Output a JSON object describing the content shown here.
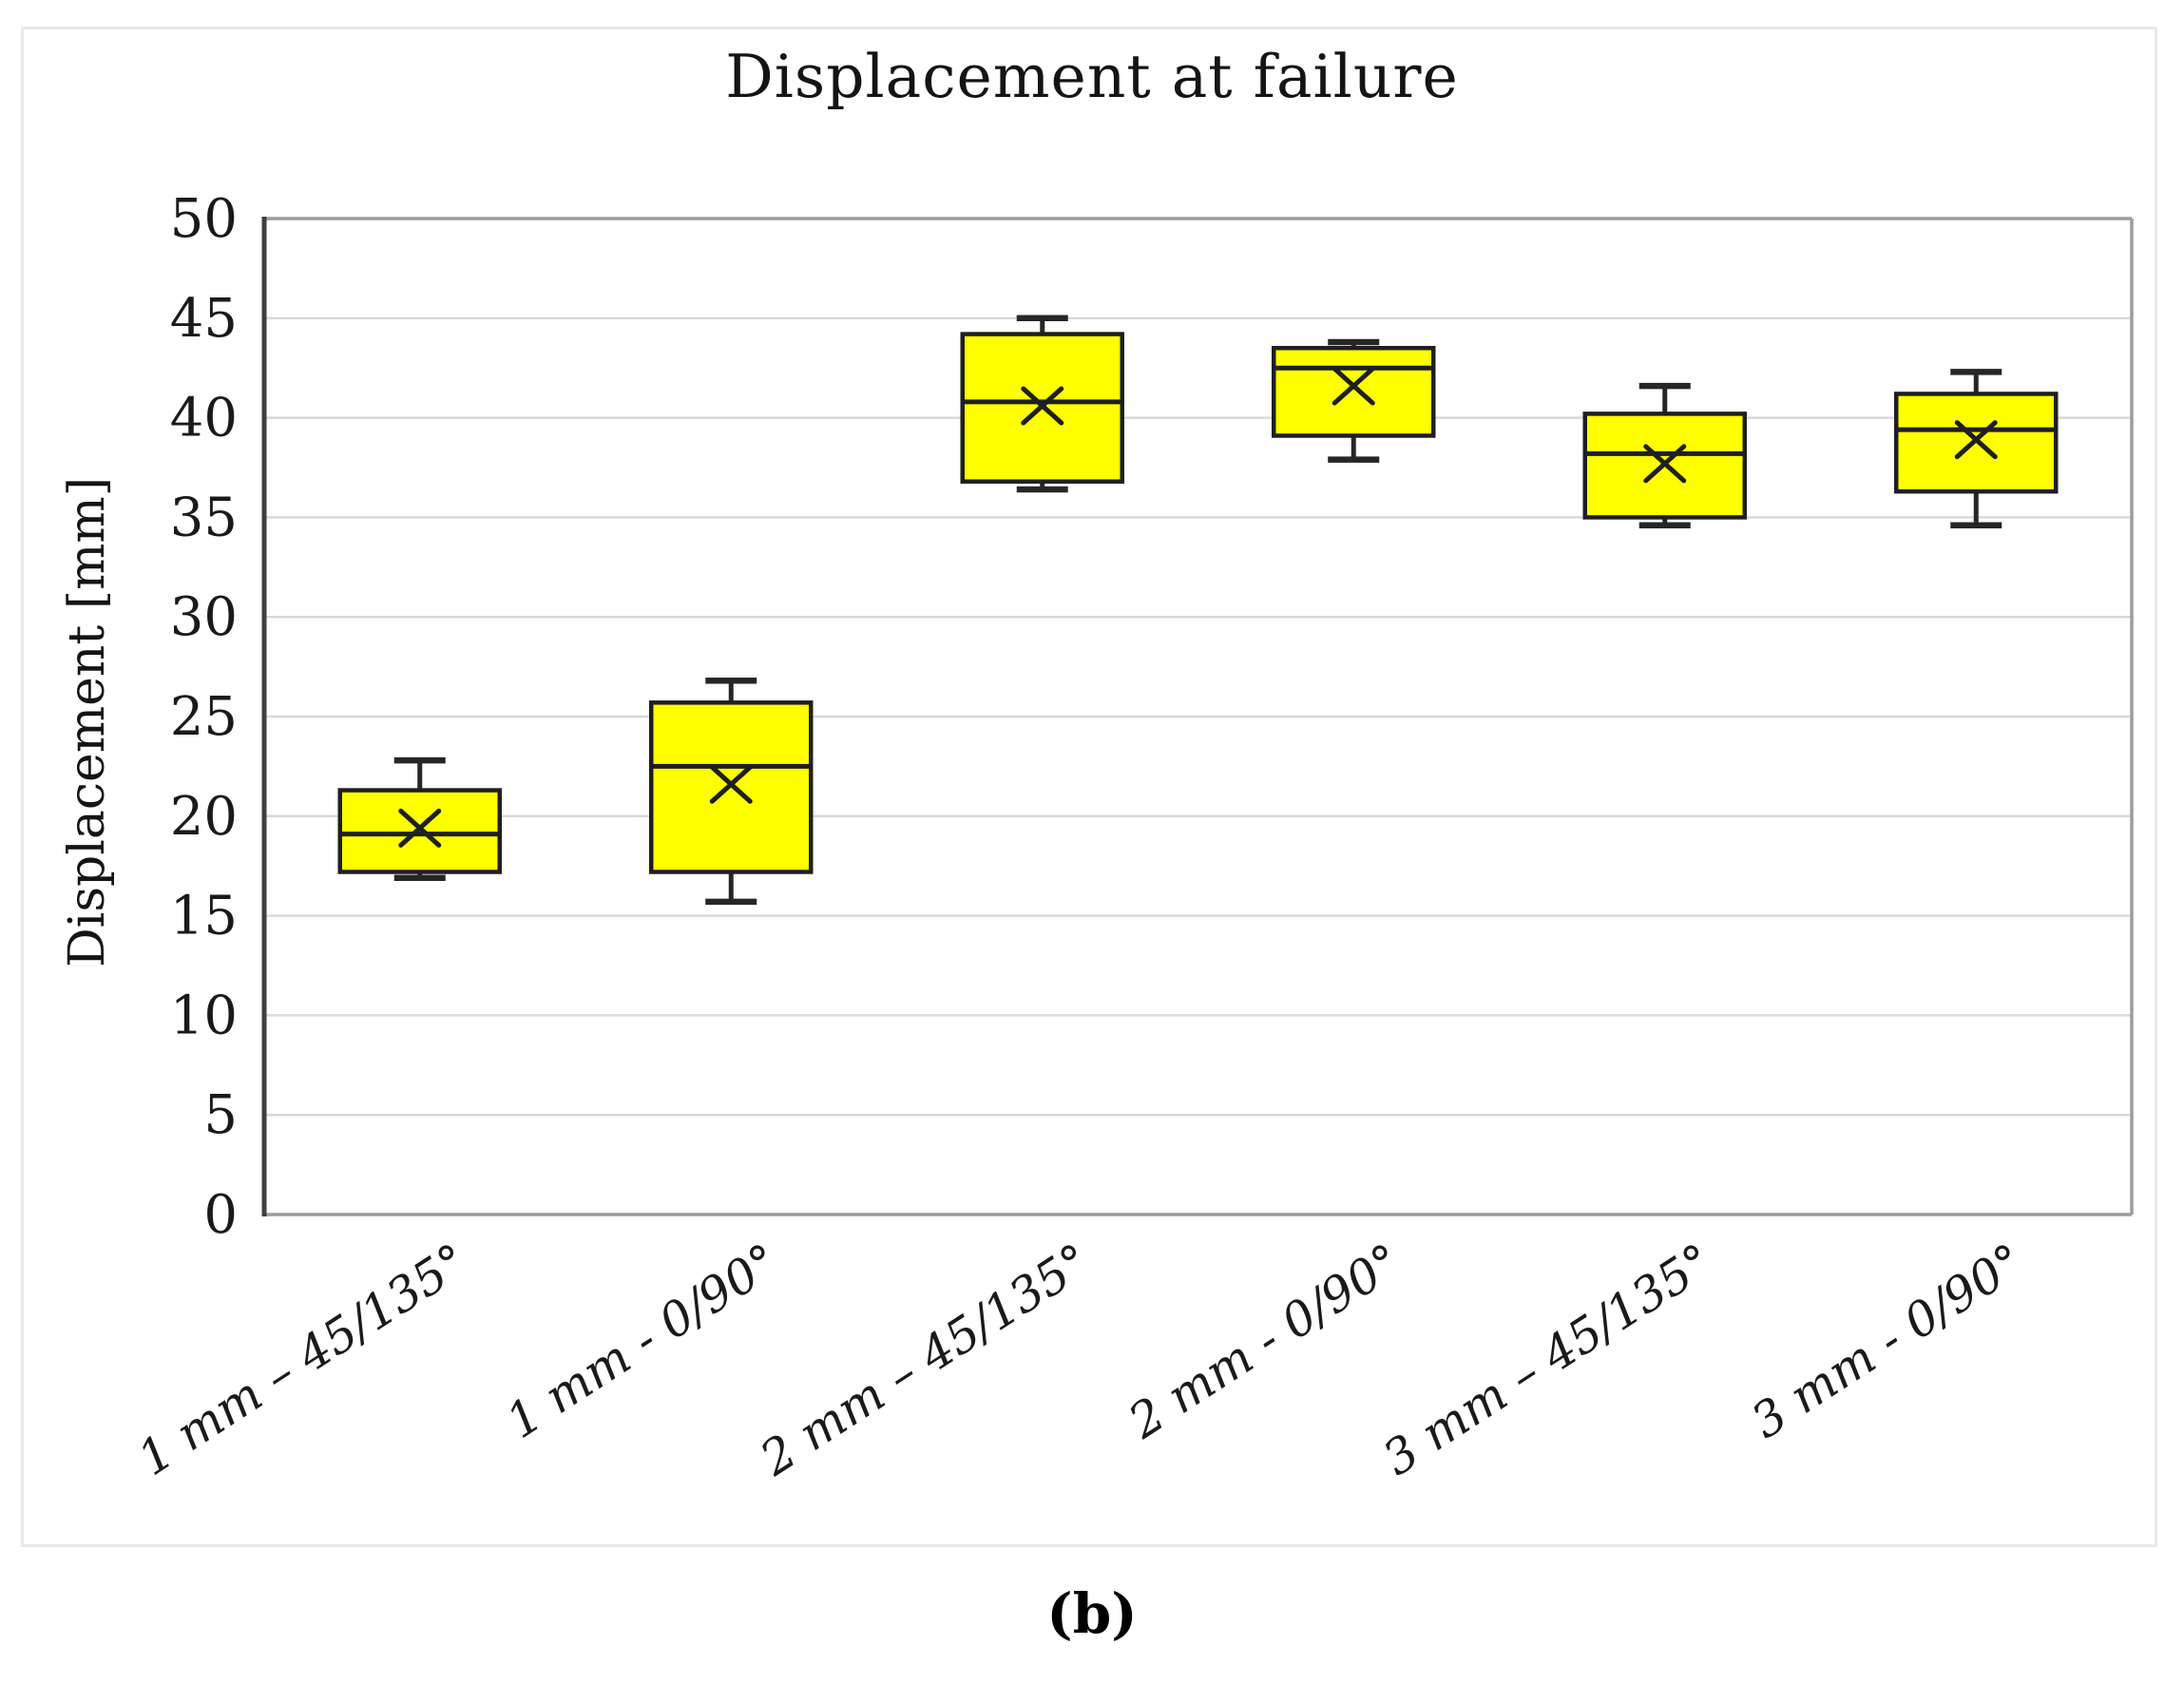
{
  "figure": {
    "caption": "(b)"
  },
  "chart_data": {
    "type": "boxplot",
    "title": "Displacement at failure",
    "xlabel": "",
    "ylabel": "Displacement [mm]",
    "ylim": [
      0,
      50
    ],
    "yticks": [
      0,
      5,
      10,
      15,
      20,
      25,
      30,
      35,
      40,
      45,
      50
    ],
    "grid": "horizontal",
    "legend": "none",
    "categories": [
      "1 mm – 45/135°",
      "1 mm -  0/90°",
      "2 mm – 45/135°",
      "2 mm -  0/90°",
      "3 mm – 45/135°",
      "3 mm -  0/90°"
    ],
    "series": [
      {
        "name": "1 mm – 45/135°",
        "min": 16.9,
        "q1": 17.2,
        "median": 19.1,
        "q3": 21.3,
        "max": 22.8,
        "mean": 19.4
      },
      {
        "name": "1 mm -  0/90°",
        "min": 15.7,
        "q1": 17.2,
        "median": 22.5,
        "q3": 25.7,
        "max": 26.8,
        "mean": 21.6
      },
      {
        "name": "2 mm – 45/135°",
        "min": 36.4,
        "q1": 36.8,
        "median": 40.8,
        "q3": 44.2,
        "max": 45.0,
        "mean": 40.6
      },
      {
        "name": "2 mm -  0/90°",
        "min": 37.9,
        "q1": 39.1,
        "median": 42.5,
        "q3": 43.5,
        "max": 43.8,
        "mean": 41.6
      },
      {
        "name": "3 mm – 45/135°",
        "min": 34.6,
        "q1": 35.0,
        "median": 38.2,
        "q3": 40.2,
        "max": 41.6,
        "mean": 37.7
      },
      {
        "name": "3 mm -  0/90°",
        "min": 34.6,
        "q1": 36.3,
        "median": 39.4,
        "q3": 41.2,
        "max": 42.3,
        "mean": 38.9
      }
    ],
    "colors": {
      "box_fill": "#FFFF00",
      "box_stroke": "#1f1f1f",
      "whisker": "#262626",
      "mean_marker": "#1f1f1f",
      "grid": "#d9d9d9",
      "axis_left": "#3f3f3f",
      "frame": "#9c9c9c",
      "text": "#1a1a1a"
    }
  }
}
